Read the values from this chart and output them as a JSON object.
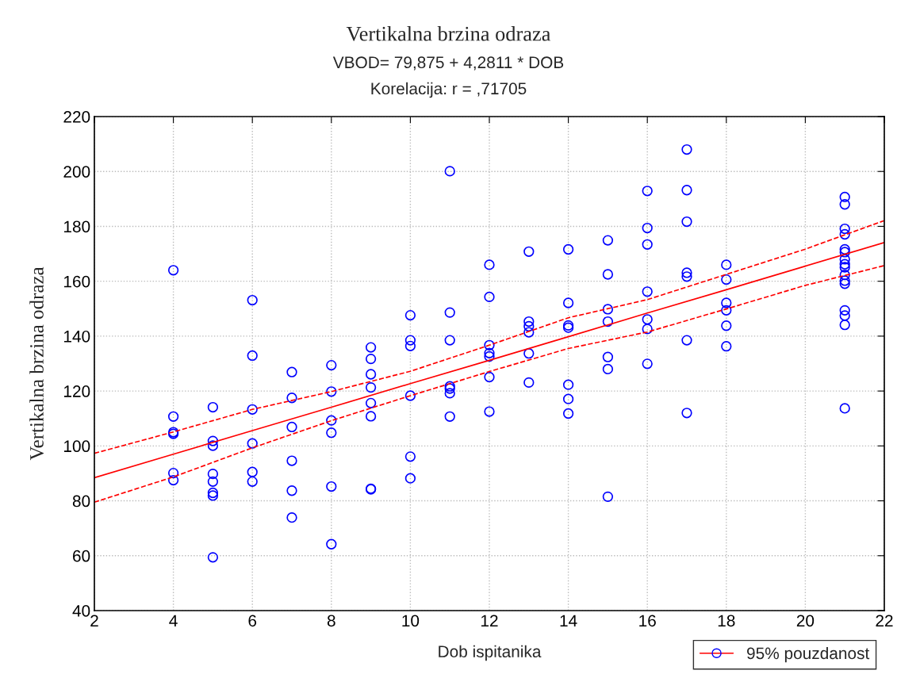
{
  "chart_data": {
    "type": "scatter",
    "title": "Vertikalna brzina odraza",
    "subtitle": "VBOD= 79,875 + 4,2811 * DOB\nKorelacija: r = ,71705",
    "xlabel": "Dob ispitanika",
    "ylabel": "Vertikalna brzina odraza",
    "xlim": [
      2,
      22
    ],
    "ylim": [
      40,
      220
    ],
    "xticks": [
      2,
      4,
      6,
      8,
      10,
      12,
      14,
      16,
      18,
      20,
      22
    ],
    "yticks": [
      40,
      60,
      80,
      100,
      120,
      140,
      160,
      180,
      200,
      220
    ],
    "grid": true,
    "legend": "bottom right",
    "marker": "circle",
    "series": [
      {
        "color": "#0000ff",
        "x": [
          4,
          4,
          4,
          4,
          4,
          4,
          5,
          5,
          5,
          5,
          5,
          5,
          5,
          5,
          6,
          6,
          6,
          6,
          6,
          6,
          7,
          7,
          7,
          7,
          7,
          7,
          8,
          8,
          8,
          8,
          8,
          8,
          9,
          9,
          9,
          9,
          9,
          9,
          9,
          9,
          10,
          10,
          10,
          10,
          10,
          10,
          11,
          11,
          11,
          11,
          11,
          11,
          11,
          12,
          12,
          12,
          12,
          12,
          12,
          12,
          13,
          13,
          13,
          13,
          13,
          13,
          14,
          14,
          14,
          14,
          14,
          14,
          14,
          15,
          15,
          15,
          15,
          15,
          15,
          15,
          16,
          16,
          16,
          16,
          16,
          16,
          16,
          17,
          17,
          17,
          17,
          17,
          17,
          17,
          18,
          18,
          18,
          18,
          18,
          18,
          21,
          21,
          21,
          21,
          21,
          21,
          21,
          21,
          21,
          21,
          21,
          21,
          21,
          21,
          21,
          21
        ],
        "values": [
          164.0,
          110.7,
          105.0,
          104.4,
          90.1,
          87.5,
          114.1,
          101.8,
          100.1,
          89.8,
          87.0,
          82.9,
          81.9,
          59.4,
          153.1,
          132.9,
          113.3,
          100.9,
          90.5,
          87.0,
          126.9,
          117.5,
          106.9,
          94.6,
          83.7,
          73.9,
          129.4,
          119.8,
          109.3,
          104.8,
          85.2,
          64.2,
          135.9,
          131.7,
          126.1,
          121.3,
          115.6,
          110.8,
          84.4,
          84.2,
          147.6,
          138.5,
          136.4,
          118.3,
          96.1,
          88.2,
          200.1,
          148.6,
          138.5,
          121.7,
          120.9,
          119.2,
          110.7,
          166.0,
          154.3,
          136.7,
          133.8,
          132.6,
          125.1,
          112.5,
          170.8,
          145.3,
          143.6,
          141.4,
          133.7,
          123.1,
          171.6,
          152.1,
          143.9,
          143.1,
          122.3,
          117.1,
          111.8,
          174.9,
          162.5,
          149.8,
          145.3,
          132.4,
          128.0,
          81.5,
          192.9,
          179.4,
          173.4,
          156.2,
          146.1,
          142.6,
          129.9,
          208.0,
          193.2,
          181.7,
          163.1,
          161.7,
          138.5,
          112.0,
          166.0,
          160.6,
          152.1,
          149.4,
          143.8,
          136.3,
          190.7,
          188.0,
          179.1,
          177.1,
          171.6,
          170.6,
          168.0,
          166.2,
          165.1,
          162.3,
          160.2,
          159.1,
          149.4,
          147.5,
          144.1,
          113.7
        ]
      },
      {
        "type": "line",
        "name": "95% pouzdanost",
        "color": "#ff0000",
        "line_style": "solid",
        "marker": "none",
        "x": [
          2,
          4,
          6,
          8,
          10,
          12,
          14,
          16,
          18,
          20,
          22
        ],
        "values": [
          88.4,
          97.0,
          105.6,
          114.1,
          122.7,
          131.2,
          139.8,
          148.4,
          156.9,
          165.5,
          174.1
        ]
      },
      {
        "type": "line",
        "color": "#ff0000",
        "line_style": "dashed",
        "marker": "none",
        "x": [
          2,
          4,
          6,
          8,
          10,
          12,
          14,
          16,
          18,
          20,
          22
        ],
        "values": [
          79.5,
          88.7,
          99.3,
          109.2,
          118.3,
          127.1,
          135.5,
          141.5,
          149.9,
          158.5,
          165.7
        ]
      },
      {
        "type": "line",
        "color": "#ff0000",
        "line_style": "dashed",
        "marker": "none",
        "x": [
          2,
          4,
          6,
          8,
          10,
          12,
          14,
          16,
          18,
          20,
          22
        ],
        "values": [
          97.3,
          105.1,
          113.3,
          119.8,
          127.2,
          136.7,
          146.7,
          153.3,
          162.5,
          171.7,
          182.1
        ]
      }
    ]
  }
}
